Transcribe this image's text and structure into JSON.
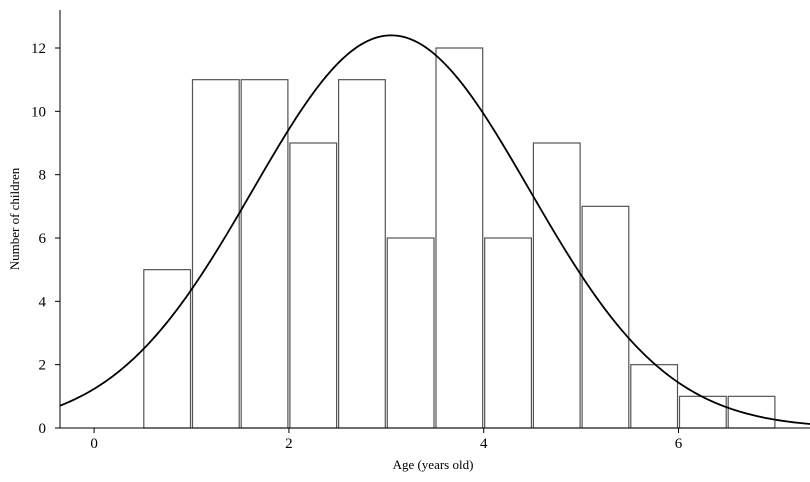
{
  "chart_data": {
    "type": "bar",
    "xlabel": "Age (years old)",
    "ylabel": "Number of children",
    "xlim": [
      -0.35,
      7.35
    ],
    "ylim": [
      0,
      13.2
    ],
    "x_ticks": [
      0,
      2,
      4,
      6
    ],
    "y_ticks": [
      0,
      2,
      4,
      6,
      8,
      10,
      12
    ],
    "bin_width": 0.5,
    "bins": [
      {
        "x0": 0.5,
        "x1": 1.0,
        "count": 5
      },
      {
        "x0": 1.0,
        "x1": 1.5,
        "count": 11
      },
      {
        "x0": 1.5,
        "x1": 2.0,
        "count": 11
      },
      {
        "x0": 2.0,
        "x1": 2.5,
        "count": 9
      },
      {
        "x0": 2.5,
        "x1": 3.0,
        "count": 11
      },
      {
        "x0": 3.0,
        "x1": 3.5,
        "count": 6
      },
      {
        "x0": 3.5,
        "x1": 4.0,
        "count": 12
      },
      {
        "x0": 4.0,
        "x1": 4.5,
        "count": 6
      },
      {
        "x0": 4.5,
        "x1": 5.0,
        "count": 9
      },
      {
        "x0": 5.0,
        "x1": 5.5,
        "count": 7
      },
      {
        "x0": 5.5,
        "x1": 6.0,
        "count": 2
      },
      {
        "x0": 6.0,
        "x1": 6.5,
        "count": 1
      },
      {
        "x0": 6.5,
        "x1": 7.0,
        "count": 1
      }
    ],
    "normal_curve": {
      "mean": 3.05,
      "sd": 1.42,
      "peak": 12.4
    },
    "grid": false,
    "legend": "none"
  }
}
